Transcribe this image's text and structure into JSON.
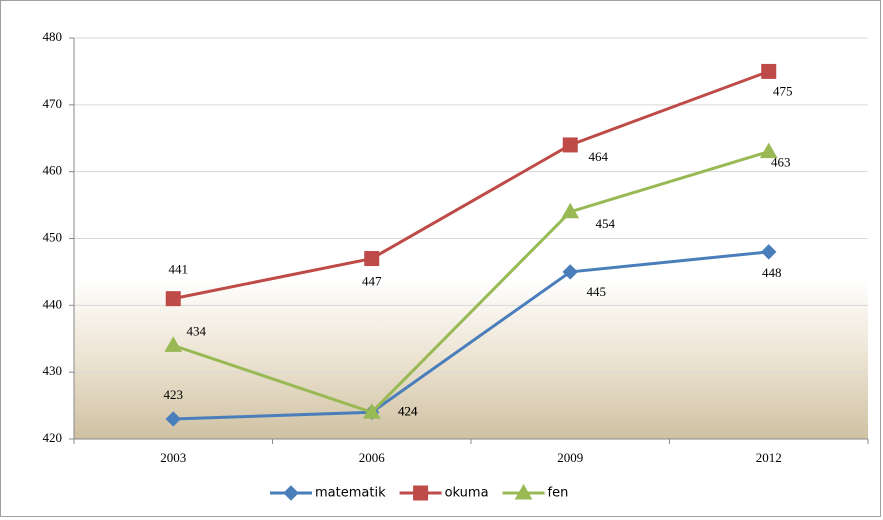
{
  "chart_data": {
    "type": "line",
    "categories": [
      "2003",
      "2006",
      "2009",
      "2012"
    ],
    "series": [
      {
        "name": "matematik",
        "color": "#4a7ebb",
        "marker": "diamond",
        "values": [
          423,
          424,
          445,
          448
        ]
      },
      {
        "name": "okuma",
        "color": "#be4b48",
        "marker": "square",
        "values": [
          441,
          447,
          464,
          475
        ]
      },
      {
        "name": "fen",
        "color": "#98b954",
        "marker": "triangle",
        "values": [
          434,
          424,
          454,
          463
        ]
      }
    ],
    "ylim": [
      420,
      480
    ],
    "yticks": [
      420,
      430,
      440,
      450,
      460,
      470,
      480
    ],
    "grid": true,
    "legend": "bottom"
  }
}
